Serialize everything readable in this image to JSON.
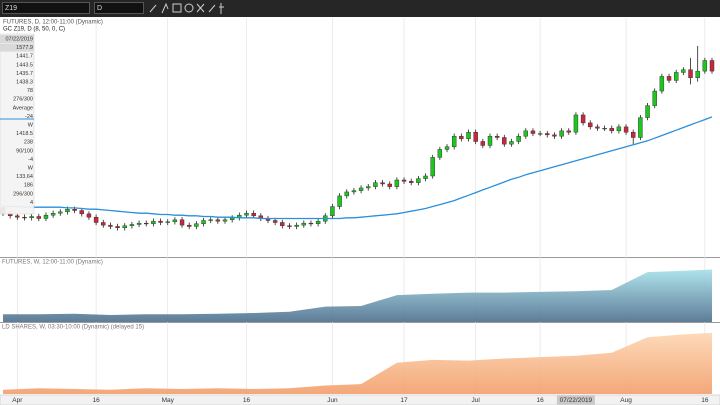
{
  "toolbar": {
    "symbol": "Z19",
    "interval": "D"
  },
  "data_window": [
    "07/22/2019",
    "1577.9",
    "1441.7",
    "1443.5",
    "1435.7",
    "1438.3",
    "78",
    "276/300",
    "Average",
    "-24",
    "W",
    "1418.5",
    "238",
    "90/100",
    "-4",
    "W",
    "133.64",
    "186",
    "296/300",
    "4"
  ],
  "chart_data": [
    {
      "type": "candlestick",
      "title": "FUTURES, D, 12:00-11:00 (Dynamic)",
      "subtitle": "GC Z19, D (8, 50, 0, C)",
      "up_color": "#1fc51f",
      "down_color": "#c8283c",
      "xlim": [
        0,
        99
      ],
      "ylim": [
        1230,
        1590
      ],
      "grid": true,
      "xticks": [
        {
          "value": 2,
          "label": "Apr"
        },
        {
          "value": 13,
          "label": "16"
        },
        {
          "value": 23,
          "label": "May"
        },
        {
          "value": 34,
          "label": "16"
        },
        {
          "value": 46,
          "label": "Jun"
        },
        {
          "value": 56,
          "label": "17"
        },
        {
          "value": 66,
          "label": "Jul"
        },
        {
          "value": 75,
          "label": "16"
        },
        {
          "value": 87,
          "label": "Aug"
        },
        {
          "value": 98,
          "label": "16"
        }
      ],
      "crosshair": {
        "x": 80,
        "label": "07/22/2019"
      },
      "open": [
        1304,
        1296,
        1292,
        1290,
        1289,
        1291,
        1288,
        1293,
        1296,
        1298,
        1302,
        1300,
        1295,
        1290,
        1282,
        1278,
        1276,
        1274,
        1277,
        1279,
        1281,
        1280,
        1284,
        1282,
        1283,
        1286,
        1278,
        1276,
        1280,
        1285,
        1286,
        1284,
        1286,
        1289,
        1293,
        1296,
        1292,
        1288,
        1285,
        1282,
        1277,
        1276,
        1278,
        1281,
        1280,
        1284,
        1292,
        1306,
        1322,
        1328,
        1330,
        1334,
        1336,
        1342,
        1340,
        1336,
        1346,
        1344,
        1342,
        1348,
        1352,
        1380,
        1392,
        1396,
        1412,
        1408,
        1418,
        1404,
        1398,
        1412,
        1410,
        1400,
        1404,
        1412,
        1420,
        1416,
        1416,
        1414,
        1412,
        1420,
        1418,
        1444,
        1432,
        1426,
        1424,
        1424,
        1420,
        1426,
        1418,
        1410,
        1440,
        1458,
        1480,
        1502,
        1496,
        1508,
        1512,
        1500,
        1510,
        1526
      ],
      "high": [
        1308,
        1300,
        1296,
        1294,
        1295,
        1295,
        1297,
        1300,
        1302,
        1306,
        1306,
        1304,
        1299,
        1294,
        1286,
        1282,
        1280,
        1281,
        1283,
        1285,
        1285,
        1288,
        1288,
        1287,
        1290,
        1290,
        1282,
        1284,
        1289,
        1290,
        1290,
        1290,
        1293,
        1297,
        1300,
        1300,
        1296,
        1292,
        1289,
        1286,
        1281,
        1282,
        1285,
        1285,
        1288,
        1296,
        1310,
        1326,
        1332,
        1334,
        1338,
        1340,
        1346,
        1346,
        1344,
        1350,
        1350,
        1348,
        1352,
        1356,
        1384,
        1396,
        1400,
        1416,
        1416,
        1422,
        1422,
        1408,
        1416,
        1416,
        1414,
        1408,
        1416,
        1424,
        1424,
        1420,
        1420,
        1418,
        1424,
        1424,
        1448,
        1448,
        1436,
        1430,
        1428,
        1428,
        1430,
        1430,
        1422,
        1444,
        1462,
        1484,
        1506,
        1506,
        1512,
        1516,
        1530,
        1548,
        1530,
        1530
      ],
      "low": [
        1292,
        1288,
        1286,
        1285,
        1285,
        1284,
        1284,
        1289,
        1292,
        1294,
        1296,
        1291,
        1286,
        1278,
        1274,
        1272,
        1270,
        1270,
        1273,
        1275,
        1276,
        1276,
        1278,
        1278,
        1279,
        1274,
        1272,
        1272,
        1276,
        1281,
        1280,
        1280,
        1282,
        1285,
        1289,
        1288,
        1284,
        1281,
        1278,
        1273,
        1272,
        1272,
        1274,
        1276,
        1276,
        1280,
        1288,
        1302,
        1318,
        1324,
        1326,
        1330,
        1332,
        1336,
        1332,
        1332,
        1340,
        1338,
        1338,
        1344,
        1348,
        1376,
        1388,
        1392,
        1404,
        1404,
        1400,
        1394,
        1394,
        1406,
        1396,
        1396,
        1400,
        1408,
        1412,
        1412,
        1410,
        1408,
        1408,
        1414,
        1414,
        1428,
        1422,
        1420,
        1420,
        1416,
        1416,
        1414,
        1400,
        1406,
        1436,
        1454,
        1476,
        1492,
        1492,
        1504,
        1490,
        1494,
        1506,
        1506
      ],
      "close": [
        1296,
        1292,
        1290,
        1289,
        1291,
        1288,
        1293,
        1296,
        1298,
        1302,
        1300,
        1295,
        1290,
        1282,
        1278,
        1276,
        1274,
        1277,
        1279,
        1281,
        1280,
        1284,
        1282,
        1283,
        1286,
        1278,
        1276,
        1280,
        1285,
        1286,
        1284,
        1286,
        1289,
        1293,
        1296,
        1292,
        1288,
        1285,
        1282,
        1277,
        1276,
        1278,
        1281,
        1280,
        1284,
        1292,
        1306,
        1322,
        1328,
        1330,
        1334,
        1336,
        1342,
        1340,
        1336,
        1346,
        1344,
        1342,
        1348,
        1352,
        1380,
        1392,
        1396,
        1412,
        1408,
        1418,
        1404,
        1398,
        1412,
        1410,
        1400,
        1404,
        1412,
        1420,
        1416,
        1416,
        1414,
        1412,
        1420,
        1418,
        1444,
        1432,
        1426,
        1424,
        1424,
        1420,
        1426,
        1418,
        1410,
        1440,
        1458,
        1480,
        1502,
        1496,
        1508,
        1512,
        1500,
        1510,
        1526,
        1510
      ],
      "series": [
        {
          "color": "#2a8fdc",
          "values": [
            1306,
            1306,
            1306,
            1305,
            1305,
            1305,
            1305,
            1305,
            1305,
            1304,
            1304,
            1303,
            1302,
            1302,
            1301,
            1300,
            1299,
            1298,
            1297,
            1296,
            1296,
            1295,
            1294,
            1294,
            1293,
            1293,
            1292,
            1292,
            1291,
            1291,
            1290,
            1290,
            1290,
            1289,
            1289,
            1289,
            1288,
            1288,
            1288,
            1288,
            1288,
            1288,
            1288,
            1288,
            1288,
            1288,
            1288,
            1288,
            1289,
            1289,
            1290,
            1291,
            1292,
            1293,
            1294,
            1295,
            1297,
            1299,
            1301,
            1303,
            1306,
            1309,
            1312,
            1315,
            1319,
            1323,
            1327,
            1331,
            1335,
            1339,
            1343,
            1347,
            1350,
            1354,
            1357,
            1360,
            1363,
            1366,
            1369,
            1372,
            1375,
            1378,
            1381,
            1384,
            1387,
            1390,
            1393,
            1396,
            1399,
            1402,
            1405,
            1409,
            1413,
            1417,
            1421,
            1425,
            1429,
            1433,
            1437,
            1441
          ]
        }
      ]
    },
    {
      "type": "area",
      "title": "FUTURES, W, 12:00-11:00 (Dynamic)",
      "colors": [
        "#a6e0ea",
        "#4d6e8c"
      ],
      "xlim": [
        0,
        99
      ],
      "ylim": [
        0,
        100
      ],
      "x": [
        0,
        5,
        10,
        15,
        20,
        25,
        30,
        35,
        40,
        45,
        50,
        55,
        60,
        65,
        70,
        75,
        80,
        85,
        90,
        95,
        99
      ],
      "values": [
        12,
        12,
        13,
        11,
        12,
        12,
        13,
        14,
        16,
        24,
        25,
        42,
        44,
        46,
        46,
        47,
        48,
        50,
        78,
        80,
        82
      ]
    },
    {
      "type": "area",
      "title": "LD SHARES, W, 03:30-10:00 (Dynamic) (delayed 15)",
      "colors": [
        "#fdd6b2",
        "#f29e6a"
      ],
      "xlim": [
        0,
        99
      ],
      "ylim": [
        0,
        100
      ],
      "x": [
        0,
        5,
        10,
        15,
        20,
        25,
        30,
        35,
        40,
        45,
        50,
        55,
        60,
        65,
        70,
        75,
        80,
        85,
        90,
        95,
        99
      ],
      "values": [
        6,
        8,
        7,
        6,
        8,
        7,
        8,
        7,
        8,
        12,
        14,
        44,
        48,
        47,
        50,
        52,
        54,
        58,
        80,
        84,
        86
      ]
    }
  ]
}
